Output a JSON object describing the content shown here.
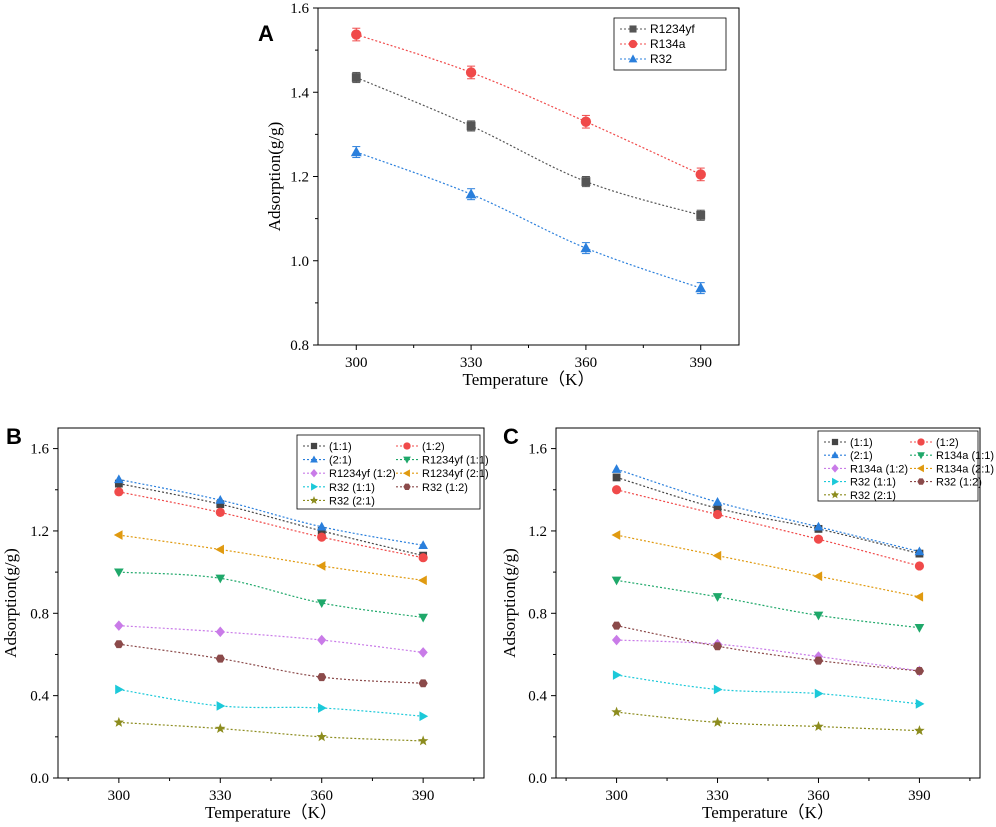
{
  "chart_data": [
    {
      "panel": "A",
      "type": "line",
      "x": [
        300,
        330,
        360,
        390
      ],
      "xlabel": "Temperature（K）",
      "ylabel": "Adsorption(g/g)",
      "xticks": [
        "300",
        "330",
        "360",
        "390"
      ],
      "yticks": [
        "0.8",
        "1.0",
        "1.2",
        "1.4",
        "1.6"
      ],
      "ylim": [
        0.8,
        1.6
      ],
      "legend_position": "top-right",
      "series": [
        {
          "name": "R1234yf",
          "values": [
            1.435,
            1.32,
            1.188,
            1.108
          ],
          "error": 0.012,
          "color": "#555555",
          "marker": "square"
        },
        {
          "name": "R134a",
          "values": [
            1.537,
            1.447,
            1.33,
            1.205
          ],
          "error": 0.015,
          "color": "#f04a4a",
          "marker": "circle"
        },
        {
          "name": "R32",
          "values": [
            1.258,
            1.158,
            1.03,
            0.935
          ],
          "error": 0.013,
          "color": "#2a7fdc",
          "marker": "triangle-up"
        }
      ]
    },
    {
      "panel": "B",
      "type": "line",
      "x": [
        300,
        330,
        360,
        390
      ],
      "xlabel": "Temperature（K）",
      "ylabel": "Adsorption(g/g)",
      "xticks": [
        "300",
        "330",
        "360",
        "390"
      ],
      "yticks": [
        "0.0",
        "0.4",
        "0.8",
        "1.2",
        "1.6"
      ],
      "ylim": [
        0.0,
        1.7
      ],
      "legend_position": "top-right",
      "series": [
        {
          "name": "(1:1)",
          "values": [
            1.43,
            1.33,
            1.2,
            1.08
          ],
          "color": "#444444",
          "marker": "square"
        },
        {
          "name": "(1:2)",
          "values": [
            1.39,
            1.29,
            1.17,
            1.07
          ],
          "color": "#f04a4a",
          "marker": "circle"
        },
        {
          "name": "(2:1)",
          "values": [
            1.45,
            1.35,
            1.22,
            1.13
          ],
          "color": "#2a7fdc",
          "marker": "triangle-up"
        },
        {
          "name": "R1234yf (1:1)",
          "values": [
            1.0,
            0.97,
            0.85,
            0.78
          ],
          "color": "#1fa86a",
          "marker": "triangle-down"
        },
        {
          "name": "R1234yf (1:2)",
          "values": [
            0.74,
            0.71,
            0.67,
            0.61
          ],
          "color": "#c97be8",
          "marker": "diamond"
        },
        {
          "name": "R1234yf (2:1)",
          "values": [
            1.18,
            1.11,
            1.03,
            0.96
          ],
          "color": "#e09a10",
          "marker": "triangle-left"
        },
        {
          "name": "R32 (1:1)",
          "values": [
            0.43,
            0.35,
            0.34,
            0.3
          ],
          "color": "#1cc9d9",
          "marker": "triangle-right"
        },
        {
          "name": "R32 (1:2)",
          "values": [
            0.65,
            0.58,
            0.49,
            0.46
          ],
          "color": "#8b4a4a",
          "marker": "hexagon"
        },
        {
          "name": "R32 (2:1)",
          "values": [
            0.27,
            0.24,
            0.2,
            0.18
          ],
          "color": "#8c8c1e",
          "marker": "star"
        }
      ]
    },
    {
      "panel": "C",
      "type": "line",
      "x": [
        300,
        330,
        360,
        390
      ],
      "xlabel": "Temperature（K）",
      "ylabel": "Adsorption(g/g)",
      "xticks": [
        "300",
        "330",
        "360",
        "390"
      ],
      "yticks": [
        "0.0",
        "0.4",
        "0.8",
        "1.2",
        "1.6"
      ],
      "ylim": [
        0.0,
        1.7
      ],
      "legend_position": "top-right",
      "series": [
        {
          "name": "(1:1)",
          "values": [
            1.46,
            1.31,
            1.21,
            1.09
          ],
          "color": "#444444",
          "marker": "square"
        },
        {
          "name": "(1:2)",
          "values": [
            1.4,
            1.28,
            1.16,
            1.03
          ],
          "color": "#f04a4a",
          "marker": "circle"
        },
        {
          "name": "(2:1)",
          "values": [
            1.5,
            1.34,
            1.22,
            1.1
          ],
          "color": "#2a7fdc",
          "marker": "triangle-up"
        },
        {
          "name": "R134a (1:1)",
          "values": [
            0.96,
            0.88,
            0.79,
            0.73
          ],
          "color": "#1fa86a",
          "marker": "triangle-down"
        },
        {
          "name": "R134a (1:2)",
          "values": [
            0.67,
            0.65,
            0.59,
            0.52
          ],
          "color": "#c97be8",
          "marker": "diamond"
        },
        {
          "name": "R134a (2:1)",
          "values": [
            1.18,
            1.08,
            0.98,
            0.88
          ],
          "color": "#e09a10",
          "marker": "triangle-left"
        },
        {
          "name": "R32 (1:1)",
          "values": [
            0.5,
            0.43,
            0.41,
            0.36
          ],
          "color": "#1cc9d9",
          "marker": "triangle-right"
        },
        {
          "name": "R32 (1:2)",
          "values": [
            0.74,
            0.64,
            0.57,
            0.52
          ],
          "color": "#8b4a4a",
          "marker": "hexagon"
        },
        {
          "name": "R32 (2:1)",
          "values": [
            0.32,
            0.27,
            0.25,
            0.23
          ],
          "color": "#8c8c1e",
          "marker": "star"
        }
      ]
    }
  ]
}
